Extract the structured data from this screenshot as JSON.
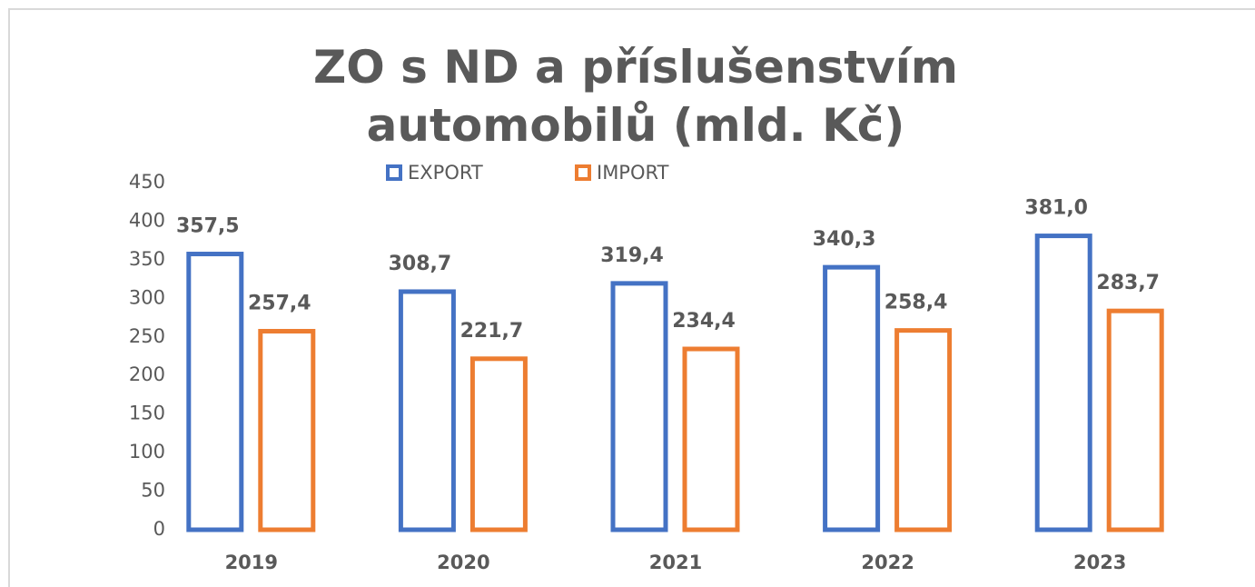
{
  "chart_data": {
    "type": "bar",
    "title": "ZO s ND a příslušenstvím automobilů (mld. Kč)",
    "categories": [
      "2019",
      "2020",
      "2021",
      "2022",
      "2023"
    ],
    "series": [
      {
        "name": "EXPORT",
        "color": "#4472c4",
        "values": [
          357.5,
          308.7,
          319.4,
          340.3,
          381.0
        ],
        "value_labels": [
          "357,5",
          "308,7",
          "319,4",
          "340,3",
          "381,0"
        ]
      },
      {
        "name": "IMPORT",
        "color": "#ed7d31",
        "values": [
          257.4,
          221.7,
          234.4,
          258.4,
          283.7
        ],
        "value_labels": [
          "257,4",
          "221,7",
          "234,4",
          "258,4",
          "283,7"
        ]
      }
    ],
    "ylim": [
      0,
      450
    ],
    "yticks": [
      0,
      50,
      100,
      150,
      200,
      250,
      300,
      350,
      400,
      450
    ],
    "grid": false,
    "legend": "top",
    "bar_style": "outline"
  }
}
